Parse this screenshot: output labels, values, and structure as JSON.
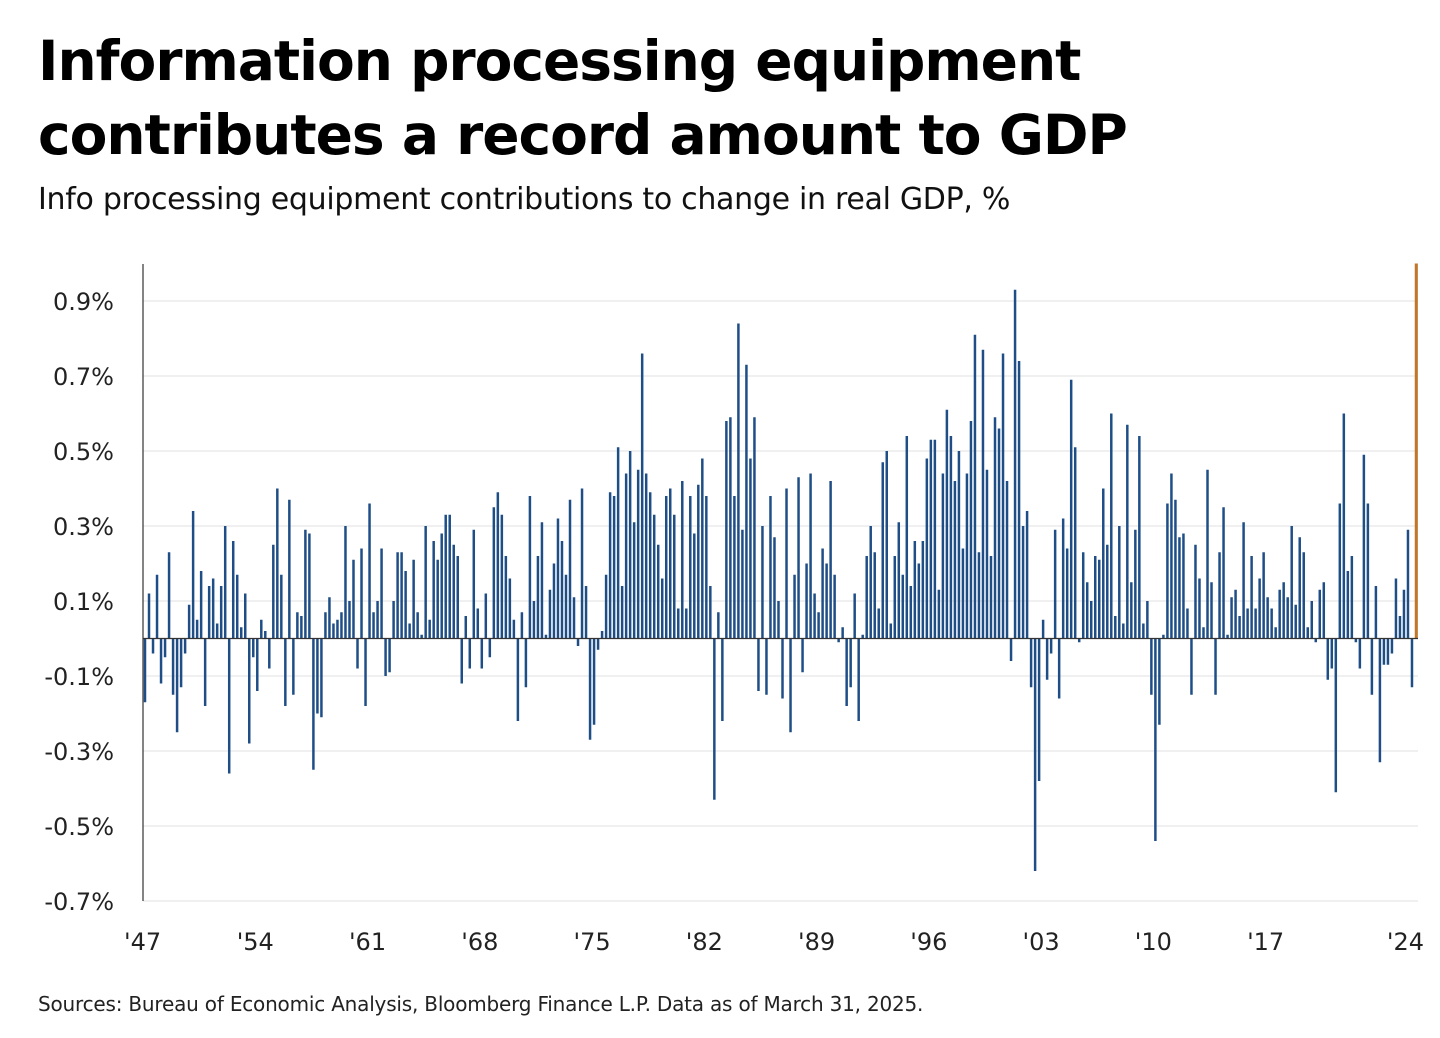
{
  "title": "Information processing equipment contributes a record amount to GDP",
  "subtitle": "Info processing equipment contributions to change in real GDP, %",
  "source": "Sources: Bureau of Economic Analysis, Bloomberg Finance L.P. Data as of March 31, 2025.",
  "colors": {
    "bar": "#1f4e86",
    "highlight": "#c0772a",
    "grid": "#e2e2e2",
    "axis": "#333333"
  },
  "chart_data": {
    "type": "bar",
    "title": "Info processing equipment contributions to change in real GDP, %",
    "xlabel": "",
    "ylabel": "%",
    "ylim": [
      -0.7,
      1.0
    ],
    "grid": true,
    "y_ticks": [
      {
        "value": 0.9,
        "label": "0.9%"
      },
      {
        "value": 0.7,
        "label": "0.7%"
      },
      {
        "value": 0.5,
        "label": "0.5%"
      },
      {
        "value": 0.3,
        "label": "0.3%"
      },
      {
        "value": 0.1,
        "label": "0.1%"
      },
      {
        "value": -0.1,
        "label": "-0.1%"
      },
      {
        "value": -0.3,
        "label": "-0.3%"
      },
      {
        "value": -0.5,
        "label": "-0.5%"
      },
      {
        "value": -0.7,
        "label": "-0.7%"
      }
    ],
    "x_ticks": [
      {
        "year": 1947,
        "label": "'47"
      },
      {
        "year": 1954,
        "label": "'54"
      },
      {
        "year": 1961,
        "label": "'61"
      },
      {
        "year": 1968,
        "label": "'68"
      },
      {
        "year": 1975,
        "label": "'75"
      },
      {
        "year": 1982,
        "label": "'82"
      },
      {
        "year": 1989,
        "label": "'89"
      },
      {
        "year": 1996,
        "label": "'96"
      },
      {
        "year": 2003,
        "label": "'03"
      },
      {
        "year": 2010,
        "label": "'10"
      },
      {
        "year": 2017,
        "label": "'17"
      },
      {
        "year": 2024,
        "label": "'24"
      }
    ],
    "start_year": 1947,
    "periods_per_year": 4,
    "annotation": "latest quarter highlighted",
    "values": [
      -0.17,
      0.12,
      -0.04,
      0.17,
      -0.12,
      -0.05,
      0.23,
      -0.15,
      -0.25,
      -0.13,
      -0.04,
      0.09,
      0.34,
      0.05,
      0.18,
      -0.18,
      0.14,
      0.16,
      0.04,
      0.14,
      0.3,
      -0.36,
      0.26,
      0.17,
      0.03,
      0.12,
      -0.28,
      -0.05,
      -0.14,
      0.05,
      0.02,
      -0.08,
      0.25,
      0.4,
      0.17,
      -0.18,
      0.37,
      -0.15,
      0.07,
      0.06,
      0.29,
      0.28,
      -0.35,
      -0.2,
      -0.21,
      0.07,
      0.11,
      0.04,
      0.05,
      0.07,
      0.3,
      0.1,
      0.21,
      -0.08,
      0.24,
      -0.18,
      0.36,
      0.07,
      0.1,
      0.24,
      -0.1,
      -0.09,
      0.1,
      0.23,
      0.23,
      0.18,
      0.04,
      0.21,
      0.07,
      0.01,
      0.3,
      0.05,
      0.26,
      0.21,
      0.28,
      0.33,
      0.33,
      0.25,
      0.22,
      -0.12,
      0.06,
      -0.08,
      0.29,
      0.08,
      -0.08,
      0.12,
      -0.05,
      0.35,
      0.39,
      0.33,
      0.22,
      0.16,
      0.05,
      -0.22,
      0.07,
      -0.13,
      0.38,
      0.1,
      0.22,
      0.31,
      0.01,
      0.13,
      0.2,
      0.32,
      0.26,
      0.17,
      0.37,
      0.11,
      -0.02,
      0.4,
      0.14,
      -0.27,
      -0.23,
      -0.03,
      0.02,
      0.17,
      0.39,
      0.38,
      0.51,
      0.14,
      0.44,
      0.5,
      0.31,
      0.45,
      0.76,
      0.44,
      0.39,
      0.33,
      0.25,
      0.16,
      0.38,
      0.4,
      0.33,
      0.08,
      0.42,
      0.08,
      0.38,
      0.28,
      0.41,
      0.48,
      0.38,
      0.14,
      -0.43,
      0.07,
      -0.22,
      0.58,
      0.59,
      0.38,
      0.84,
      0.29,
      0.73,
      0.48,
      0.59,
      -0.14,
      0.3,
      -0.15,
      0.38,
      0.27,
      0.1,
      -0.16,
      0.4,
      -0.25,
      0.17,
      0.43,
      -0.09,
      0.2,
      0.44,
      0.12,
      0.07,
      0.24,
      0.2,
      0.42,
      0.17,
      -0.01,
      0.03,
      -0.18,
      -0.13,
      0.12,
      -0.22,
      0.01,
      0.22,
      0.3,
      0.23,
      0.08,
      0.47,
      0.5,
      0.04,
      0.22,
      0.31,
      0.17,
      0.54,
      0.14,
      0.26,
      0.2,
      0.26,
      0.48,
      0.53,
      0.53,
      0.13,
      0.44,
      0.61,
      0.54,
      0.42,
      0.5,
      0.24,
      0.44,
      0.58,
      0.81,
      0.23,
      0.77,
      0.45,
      0.22,
      0.59,
      0.56,
      0.76,
      0.42,
      -0.06,
      0.93,
      0.74,
      0.3,
      0.34,
      -0.13,
      -0.62,
      -0.38,
      0.05,
      -0.11,
      -0.04,
      0.29,
      -0.16,
      0.32,
      0.24,
      0.69,
      0.51,
      -0.01,
      0.23,
      0.15,
      0.1,
      0.22,
      0.21,
      0.4,
      0.25,
      0.6,
      0.06,
      0.3,
      0.04,
      0.57,
      0.15,
      0.29,
      0.54,
      0.04,
      0.1,
      -0.15,
      -0.54,
      -0.23,
      0.01,
      0.36,
      0.44,
      0.37,
      0.27,
      0.28,
      0.08,
      -0.15,
      0.25,
      0.16,
      0.03,
      0.45,
      0.15,
      -0.15,
      0.23,
      0.35,
      0.01,
      0.11,
      0.13,
      0.06,
      0.31,
      0.08,
      0.22,
      0.08,
      0.16,
      0.23,
      0.11,
      0.08,
      0.03,
      0.13,
      0.15,
      0.11,
      0.3,
      0.09,
      0.27,
      0.23,
      0.03,
      0.1,
      -0.01,
      0.13,
      0.15,
      -0.11,
      -0.08,
      -0.41,
      0.36,
      0.6,
      0.18,
      0.22,
      -0.01,
      -0.08,
      0.49,
      0.36,
      -0.15,
      0.14,
      -0.33,
      -0.07,
      -0.07,
      -0.04,
      0.16,
      0.06,
      0.13,
      0.29,
      -0.13,
      1.0
    ]
  }
}
